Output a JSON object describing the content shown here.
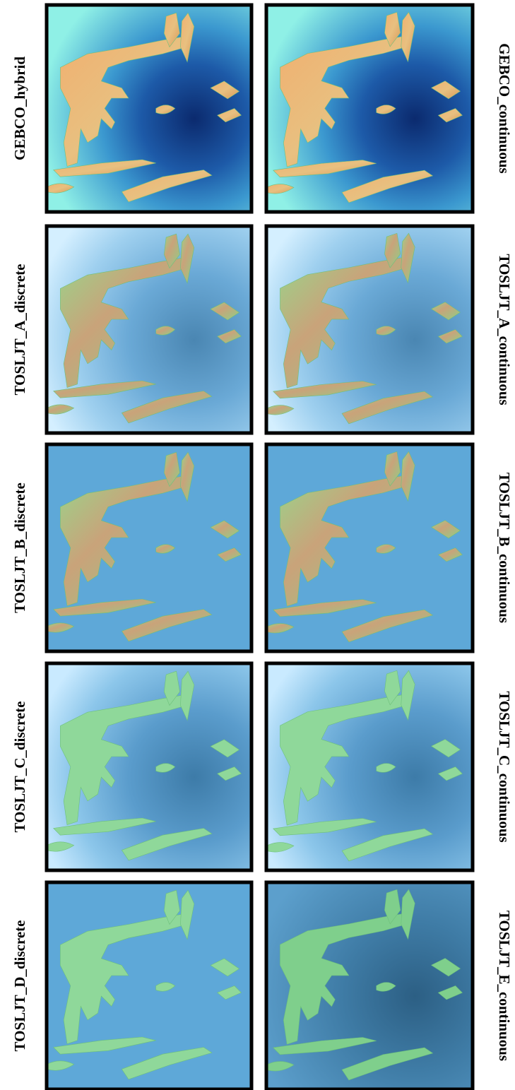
{
  "panels": [
    {
      "label": "GEBCO_hybrid"
    },
    {
      "label": "GEBCO_continuous"
    },
    {
      "label": "TOSLJT_A_discrete"
    },
    {
      "label": "TOSLJT_A_continuous"
    },
    {
      "label": "TOSLJT_B_discrete"
    },
    {
      "label": "TOSLJT_B_continuous"
    },
    {
      "label": "TOSLJT_C_discrete"
    },
    {
      "label": "TOSLJT_C_continuous"
    },
    {
      "label": "TOSLJT_D_discrete"
    },
    {
      "label": "TOSLJT_E_continuous"
    }
  ]
}
